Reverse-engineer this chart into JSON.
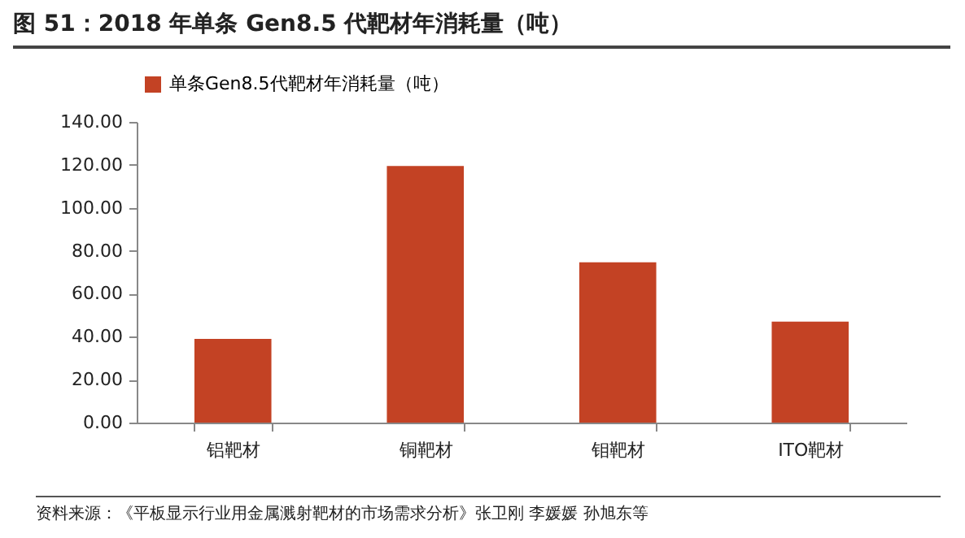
{
  "chart_data": {
    "type": "bar",
    "title": "图 51：2018 年单条 Gen8.5 代靶材年消耗量（吨）",
    "categories": [
      "铝靶材",
      "铜靶材",
      "钼靶材",
      "ITO靶材"
    ],
    "series": [
      {
        "name": "单条Gen8.5代靶材年消耗量（吨）",
        "color": "#c34224",
        "values": [
          39,
          119.5,
          74.6,
          47
        ]
      }
    ],
    "ylim": [
      0,
      140
    ],
    "yticks": [
      {
        "value": 0,
        "label": "0.00"
      },
      {
        "value": 20,
        "label": "20.00"
      },
      {
        "value": 40,
        "label": "40.00"
      },
      {
        "value": 60,
        "label": "60.00"
      },
      {
        "value": 80,
        "label": "80.00"
      },
      {
        "value": 100,
        "label": "100.00"
      },
      {
        "value": 120,
        "label": "120.00"
      },
      {
        "value": 140,
        "label": "140.00"
      }
    ],
    "legend": "top",
    "annotations": [
      "资料来源：《平板显示行业用金属溅射靶材的市场需求分析》张卫刚  李媛媛  孙旭东等"
    ]
  }
}
